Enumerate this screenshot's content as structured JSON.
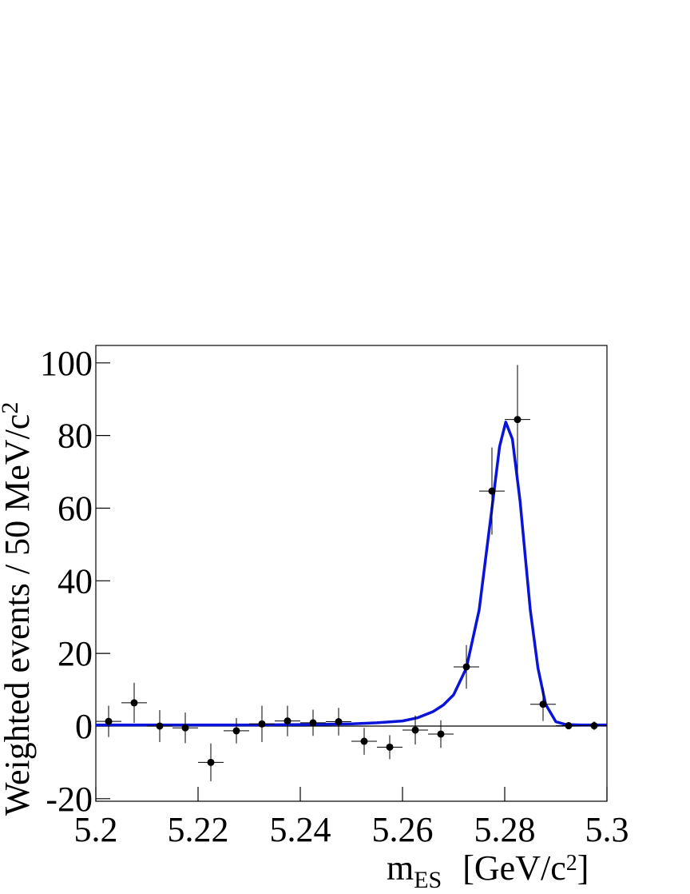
{
  "chart_data": {
    "type": "fit",
    "x_label": {
      "symbol": "m",
      "subscript": "ES",
      "unit": "[GeV/c",
      "superscript": "2",
      "close": "]"
    },
    "y_label": {
      "text": "Weighted events / 50 MeV/c",
      "superscript": "2"
    },
    "xlim": [
      5.2,
      5.3
    ],
    "xticks": [
      5.2,
      5.22,
      5.24,
      5.26,
      5.28,
      5.3
    ],
    "ylim": [
      -20.7,
      104.8
    ],
    "yticks": [
      -20,
      0,
      20,
      40,
      60,
      80,
      100
    ],
    "zero_line": true,
    "series": [
      {
        "kind": "points",
        "color": "#000000",
        "x": [
          5.2025,
          5.2075,
          5.2125,
          5.2175,
          5.2225,
          5.2275,
          5.2325,
          5.2375,
          5.2425,
          5.2475,
          5.2525,
          5.2575,
          5.2625,
          5.2675,
          5.2725,
          5.2775,
          5.2825,
          5.2875,
          5.2925,
          5.2975
        ],
        "values": [
          1.3,
          6.4,
          0,
          -0.5,
          -10,
          -1.3,
          0.6,
          1.4,
          0.9,
          1.2,
          -4.2,
          -5.8,
          -1.1,
          -2.2,
          16.3,
          64.7,
          84.4,
          6.0,
          0.1,
          0.1
        ],
        "yerr": [
          4.3,
          5.5,
          4.4,
          4.2,
          5.2,
          3.5,
          5,
          4.2,
          3.6,
          3.8,
          3.7,
          3.3,
          4,
          3.8,
          6,
          12,
          15,
          4.6,
          1,
          1.2
        ],
        "xerr": [
          0.0025,
          0.0025,
          0.0025,
          0.0025,
          0.0025,
          0.0025,
          0.0025,
          0.0025,
          0.0025,
          0.0025,
          0.0025,
          0.0025,
          0.0025,
          0.0025,
          0.0025,
          0.0025,
          0.0025,
          0.0025,
          0.0025,
          0.0025
        ]
      },
      {
        "kind": "curve",
        "color": "#0a14d8",
        "x": [
          5.2,
          5.21,
          5.22,
          5.23,
          5.24,
          5.25,
          5.255,
          5.26,
          5.263,
          5.266,
          5.268,
          5.27,
          5.2725,
          5.275,
          5.2775,
          5.279,
          5.2802,
          5.2815,
          5.283,
          5.285,
          5.2865,
          5.288,
          5.29,
          5.292,
          5.295,
          5.3
        ],
        "values": [
          0.3,
          0.3,
          0.3,
          0.3,
          0.4,
          0.6,
          0.9,
          1.4,
          2.3,
          4,
          5.8,
          8.6,
          16,
          32,
          60,
          77,
          83.7,
          79,
          62,
          32,
          16,
          6,
          1.2,
          0.4,
          0.3,
          0.3
        ]
      }
    ]
  }
}
